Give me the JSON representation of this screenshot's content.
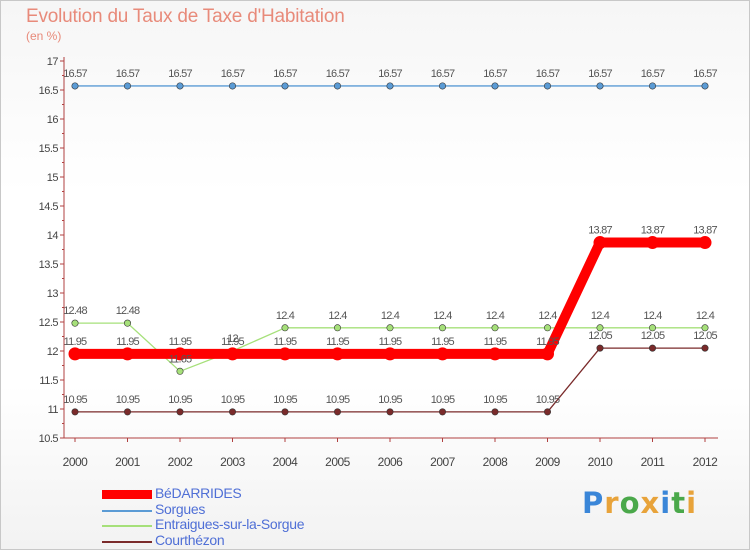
{
  "header": {
    "title": "Evolution du Taux de Taxe d'Habitation",
    "unit": "(en %)"
  },
  "branding": {
    "logo_text": "Proxiti",
    "letter_colors": [
      "#3a86d8",
      "#e8a33a",
      "#4aa84a",
      "#e8a33a",
      "#3a86d8",
      "#4aa84a",
      "#e8a33a"
    ]
  },
  "chart_data": {
    "type": "line",
    "title": "Evolution du Taux de Taxe d'Habitation",
    "ylabel": "(en %)",
    "xlabel": "",
    "x": [
      "2000",
      "2001",
      "2002",
      "2003",
      "2004",
      "2005",
      "2006",
      "2007",
      "2008",
      "2009",
      "2010",
      "2011",
      "2012"
    ],
    "ylim": [
      10.5,
      17
    ],
    "yticks": [
      "10.5",
      "11",
      "11.5",
      "12",
      "12.5",
      "13",
      "13.5",
      "14",
      "14.5",
      "15",
      "15.5",
      "16",
      "16.5",
      "17"
    ],
    "grid": false,
    "legend_position": "bottom-left",
    "series": [
      {
        "name": "BéDARRIDES",
        "color": "#ff0000",
        "emphasis": "thick",
        "values": [
          11.95,
          11.95,
          11.95,
          11.95,
          11.95,
          11.95,
          11.95,
          11.95,
          11.95,
          11.95,
          13.87,
          13.87,
          13.87
        ],
        "labels": [
          "11.95",
          "11.95",
          "11.95",
          "11.95",
          "11.95",
          "11.95",
          "11.95",
          "11.95",
          "11.95",
          "11.95",
          "13.87",
          "13.87",
          "13.87"
        ]
      },
      {
        "name": "Sorgues",
        "color": "#5b9bd5",
        "values": [
          16.57,
          16.57,
          16.57,
          16.57,
          16.57,
          16.57,
          16.57,
          16.57,
          16.57,
          16.57,
          16.57,
          16.57,
          16.57
        ],
        "labels": [
          "16.57",
          "16.57",
          "16.57",
          "16.57",
          "16.57",
          "16.57",
          "16.57",
          "16.57",
          "16.57",
          "16.57",
          "16.57",
          "16.57",
          "16.57"
        ]
      },
      {
        "name": "Entraigues-sur-la-Sorgue",
        "color": "#a6e07a",
        "values": [
          12.48,
          12.48,
          11.65,
          12.0,
          12.4,
          12.4,
          12.4,
          12.4,
          12.4,
          12.4,
          12.4,
          12.4,
          12.4
        ],
        "labels": [
          "12.48",
          "12.48",
          "11.65",
          "12",
          "12.4",
          "12.4",
          "12.4",
          "12.4",
          "12.4",
          "12.4",
          "12.4",
          "12.4",
          "12.4"
        ]
      },
      {
        "name": "Courthézon",
        "color": "#7a2a2a",
        "values": [
          10.95,
          10.95,
          10.95,
          10.95,
          10.95,
          10.95,
          10.95,
          10.95,
          10.95,
          10.95,
          12.05,
          12.05,
          12.05
        ],
        "labels": [
          "10.95",
          "10.95",
          "10.95",
          "10.95",
          "10.95",
          "10.95",
          "10.95",
          "10.95",
          "10.95",
          "10.95",
          "12.05",
          "12.05",
          "12.05"
        ]
      }
    ]
  }
}
